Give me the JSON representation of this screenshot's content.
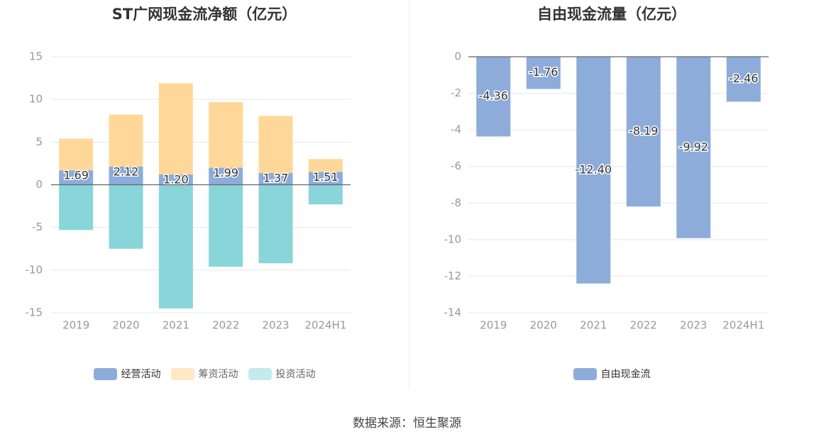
{
  "footer": {
    "source": "数据来源：恒生聚源"
  },
  "colors": {
    "operating": "#8DACDA",
    "financing": "#FFD899",
    "investing": "#88D5DA",
    "free": "#8DACDA",
    "axis": "#666666",
    "grid": "#E6E8EE",
    "tick": "#999999"
  },
  "chart_data": [
    {
      "type": "bar",
      "stacked": true,
      "title": "ST广网现金流净额（亿元）",
      "categories": [
        "2019",
        "2020",
        "2021",
        "2022",
        "2023",
        "2024H1"
      ],
      "series": [
        {
          "name": "经营活动",
          "values": [
            1.69,
            2.12,
            1.2,
            1.99,
            1.37,
            1.51
          ],
          "labels": [
            "1.69",
            "2.12",
            "1.20",
            "1.99",
            "1.37",
            "1.51"
          ]
        },
        {
          "name": "筹资活动",
          "values": [
            3.7,
            6.1,
            10.7,
            7.7,
            6.7,
            1.5
          ]
        },
        {
          "name": "投资活动",
          "values": [
            -5.3,
            -7.5,
            -14.5,
            -9.6,
            -9.2,
            -2.3
          ]
        }
      ],
      "ylim": [
        -15,
        15
      ],
      "yticks": [
        15,
        10,
        5,
        0,
        -5,
        -10,
        -15
      ],
      "ytick_labels": [
        "15",
        "10",
        "5",
        "0",
        "-5",
        "-10",
        "-15"
      ],
      "legend": "bottom",
      "grid": true
    },
    {
      "type": "bar",
      "title": "自由现金流量（亿元）",
      "categories": [
        "2019",
        "2020",
        "2021",
        "2022",
        "2023",
        "2024H1"
      ],
      "series": [
        {
          "name": "自由现金流",
          "values": [
            -4.36,
            -1.76,
            -12.4,
            -8.19,
            -9.92,
            -2.46
          ],
          "labels": [
            "-4.36",
            "-1.76",
            "-12.40",
            "-8.19",
            "-9.92",
            "-2.46"
          ]
        }
      ],
      "ylim": [
        -14,
        0
      ],
      "yticks": [
        0,
        -2,
        -4,
        -6,
        -8,
        -10,
        -12,
        -14
      ],
      "ytick_labels": [
        "0",
        "-2",
        "-4",
        "-6",
        "-8",
        "-10",
        "-12",
        "-14"
      ],
      "legend": "bottom",
      "grid": true
    }
  ]
}
